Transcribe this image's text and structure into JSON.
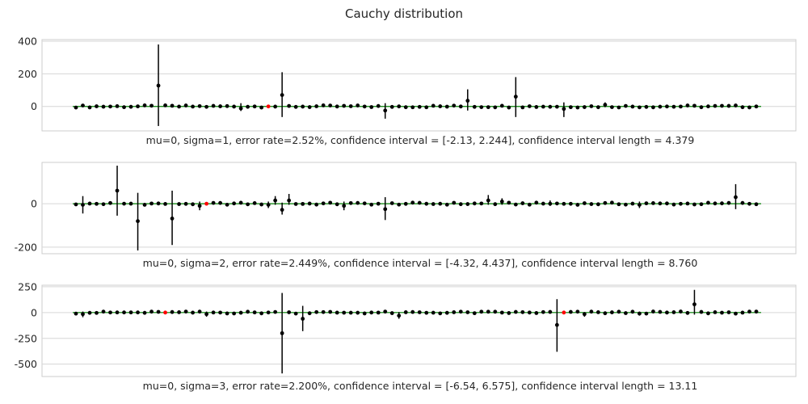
{
  "chart_data": [
    {
      "type": "scatter",
      "title": "Cauchy distribution",
      "xlabel": "mu=0, sigma=1, error rate=2.52%, confidence interval = [-2.13, 2.244], confidence interval length = 4.379",
      "ylabel": "",
      "ylim": [
        -150,
        410
      ],
      "yticks": [
        0,
        200,
        400
      ],
      "grid": true,
      "n_points": 100,
      "reference_line": {
        "y": 0,
        "color": "#008000"
      },
      "point_color": "#000000",
      "outlier_color": "#ff0000",
      "outlier_index": [
        28
      ],
      "points": [
        {
          "x": 12,
          "y": 128,
          "err_low": -120,
          "err_high": 380
        },
        {
          "x": 24,
          "y": -12,
          "err_low": -28,
          "err_high": 20
        },
        {
          "x": 28,
          "y": 0,
          "err_low": -2,
          "err_high": 2
        },
        {
          "x": 30,
          "y": 70,
          "err_low": -65,
          "err_high": 210
        },
        {
          "x": 45,
          "y": -25,
          "err_low": -75,
          "err_high": 20
        },
        {
          "x": 57,
          "y": 35,
          "err_low": -25,
          "err_high": 105
        },
        {
          "x": 64,
          "y": 60,
          "err_low": -65,
          "err_high": 180
        },
        {
          "x": 71,
          "y": -15,
          "err_low": -65,
          "err_high": 25
        },
        {
          "x": 77,
          "y": 10,
          "err_low": -5,
          "err_high": 25
        }
      ]
    },
    {
      "type": "scatter",
      "xlabel": "mu=0, sigma=2, error rate=2.449%, confidence interval = [-4.32, 4.437], confidence interval length = 8.760",
      "ylabel": "",
      "ylim": [
        -230,
        190
      ],
      "yticks": [
        -200,
        0
      ],
      "grid": true,
      "n_points": 100,
      "reference_line": {
        "y": 0,
        "color": "#008000"
      },
      "point_color": "#000000",
      "outlier_color": "#ff0000",
      "outlier_index": [
        19
      ],
      "points": [
        {
          "x": 1,
          "y": -5,
          "err_low": -45,
          "err_high": 35
        },
        {
          "x": 6,
          "y": 60,
          "err_low": -55,
          "err_high": 175
        },
        {
          "x": 9,
          "y": -80,
          "err_low": -215,
          "err_high": 50
        },
        {
          "x": 14,
          "y": -68,
          "err_low": -190,
          "err_high": 60
        },
        {
          "x": 18,
          "y": -10,
          "err_low": -30,
          "err_high": 10
        },
        {
          "x": 19,
          "y": 0,
          "err_low": -2,
          "err_high": 2
        },
        {
          "x": 28,
          "y": -5,
          "err_low": -20,
          "err_high": 10
        },
        {
          "x": 29,
          "y": 15,
          "err_low": -5,
          "err_high": 35
        },
        {
          "x": 30,
          "y": -28,
          "err_low": -50,
          "err_high": 5
        },
        {
          "x": 31,
          "y": 15,
          "err_low": -5,
          "err_high": 45
        },
        {
          "x": 39,
          "y": -10,
          "err_low": -30,
          "err_high": 10
        },
        {
          "x": 45,
          "y": -25,
          "err_low": -75,
          "err_high": 30
        },
        {
          "x": 60,
          "y": 15,
          "err_low": -5,
          "err_high": 40
        },
        {
          "x": 62,
          "y": 10,
          "err_low": -5,
          "err_high": 25
        },
        {
          "x": 69,
          "y": 0,
          "err_low": -10,
          "err_high": 15
        },
        {
          "x": 82,
          "y": -5,
          "err_low": -20,
          "err_high": 10
        },
        {
          "x": 96,
          "y": 30,
          "err_low": -25,
          "err_high": 90
        }
      ]
    },
    {
      "type": "scatter",
      "xlabel": "mu=0, sigma=3, error rate=2.200%, confidence interval = [-6.54, 6.575], confidence interval length = 13.11",
      "ylabel": "",
      "ylim": [
        -620,
        265
      ],
      "yticks": [
        -500,
        -250,
        0,
        250
      ],
      "grid": true,
      "n_points": 100,
      "reference_line": {
        "y": 0,
        "color": "#008000"
      },
      "point_color": "#000000",
      "outlier_color": "#ff0000",
      "outlier_index": [
        13,
        71
      ],
      "points": [
        {
          "x": 1,
          "y": -15,
          "err_low": -45,
          "err_high": 10
        },
        {
          "x": 13,
          "y": 0,
          "err_low": -2,
          "err_high": 2
        },
        {
          "x": 19,
          "y": -15,
          "err_low": -40,
          "err_high": 10
        },
        {
          "x": 30,
          "y": -200,
          "err_low": -590,
          "err_high": 190
        },
        {
          "x": 33,
          "y": -60,
          "err_low": -180,
          "err_high": 65
        },
        {
          "x": 47,
          "y": -30,
          "err_low": -60,
          "err_high": 5
        },
        {
          "x": 70,
          "y": -120,
          "err_low": -380,
          "err_high": 130
        },
        {
          "x": 71,
          "y": 0,
          "err_low": -2,
          "err_high": 2
        },
        {
          "x": 74,
          "y": -15,
          "err_low": -40,
          "err_high": 5
        },
        {
          "x": 82,
          "y": -10,
          "err_low": -30,
          "err_high": 10
        },
        {
          "x": 90,
          "y": 80,
          "err_low": -20,
          "err_high": 220
        }
      ]
    }
  ]
}
